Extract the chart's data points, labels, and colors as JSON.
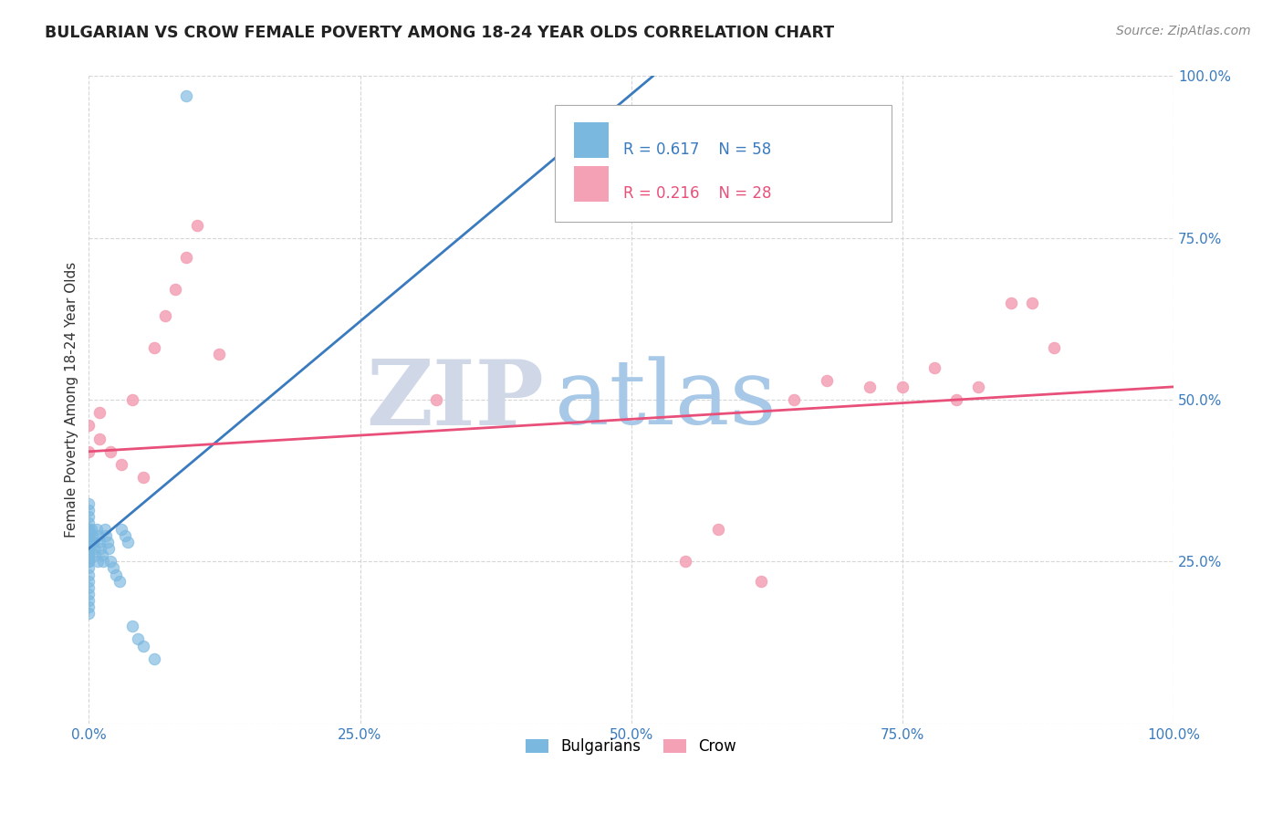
{
  "title": "BULGARIAN VS CROW FEMALE POVERTY AMONG 18-24 YEAR OLDS CORRELATION CHART",
  "source": "Source: ZipAtlas.com",
  "ylabel": "Female Poverty Among 18-24 Year Olds",
  "xlim": [
    0,
    1
  ],
  "ylim": [
    0,
    1
  ],
  "xticks": [
    0.0,
    0.25,
    0.5,
    0.75,
    1.0
  ],
  "yticks": [
    0.0,
    0.25,
    0.5,
    0.75,
    1.0
  ],
  "xtick_labels": [
    "0.0%",
    "25.0%",
    "50.0%",
    "75.0%",
    "100.0%"
  ],
  "ytick_labels": [
    "",
    "25.0%",
    "50.0%",
    "75.0%",
    "100.0%"
  ],
  "bulgarians_color": "#7bb8e0",
  "crow_color": "#f4a0b5",
  "trend_blue": "#3a7bbf",
  "trend_pink": "#e8507a",
  "watermark_zip": "ZIP",
  "watermark_atlas": "atlas",
  "watermark_color_zip": "#d0d8e8",
  "watermark_color_atlas": "#a8c8e8",
  "background_color": "#ffffff",
  "grid_color": "#cccccc",
  "legend_R1": "0.617",
  "legend_N1": "58",
  "legend_R2": "0.216",
  "legend_N2": "28",
  "blue_trend_x0": 0.0,
  "blue_trend_y0": 0.27,
  "blue_trend_x1": 0.52,
  "blue_trend_y1": 1.0,
  "pink_trend_x0": 0.0,
  "pink_trend_y0": 0.42,
  "pink_trend_x1": 1.0,
  "pink_trend_y1": 0.52,
  "bulg_x": [
    0.0,
    0.0,
    0.0,
    0.0,
    0.0,
    0.0,
    0.0,
    0.0,
    0.0,
    0.0,
    0.0,
    0.0,
    0.0,
    0.0,
    0.0,
    0.0,
    0.0,
    0.0,
    0.0,
    0.0,
    0.0,
    0.0,
    0.0,
    0.0,
    0.0,
    0.0,
    0.0,
    0.0,
    0.0,
    0.0,
    0.002,
    0.003,
    0.004,
    0.005,
    0.006,
    0.007,
    0.008,
    0.009,
    0.01,
    0.011,
    0.012,
    0.013,
    0.015,
    0.016,
    0.017,
    0.018,
    0.02,
    0.022,
    0.025,
    0.028,
    0.03,
    0.033,
    0.036,
    0.04,
    0.045,
    0.05,
    0.06,
    0.09
  ],
  "bulg_y": [
    0.27,
    0.29,
    0.3,
    0.28,
    0.26,
    0.31,
    0.32,
    0.33,
    0.34,
    0.27,
    0.25,
    0.28,
    0.3,
    0.27,
    0.26,
    0.25,
    0.29,
    0.28,
    0.3,
    0.27,
    0.26,
    0.25,
    0.24,
    0.23,
    0.22,
    0.21,
    0.2,
    0.19,
    0.18,
    0.17,
    0.3,
    0.29,
    0.28,
    0.27,
    0.26,
    0.3,
    0.25,
    0.29,
    0.28,
    0.27,
    0.26,
    0.25,
    0.3,
    0.29,
    0.28,
    0.27,
    0.25,
    0.24,
    0.23,
    0.22,
    0.3,
    0.29,
    0.28,
    0.15,
    0.13,
    0.12,
    0.1,
    0.97
  ],
  "crow_x": [
    0.0,
    0.0,
    0.01,
    0.01,
    0.02,
    0.03,
    0.04,
    0.05,
    0.06,
    0.07,
    0.08,
    0.09,
    0.1,
    0.12,
    0.32,
    0.55,
    0.58,
    0.62,
    0.65,
    0.68,
    0.72,
    0.75,
    0.78,
    0.8,
    0.82,
    0.85,
    0.87,
    0.89
  ],
  "crow_y": [
    0.42,
    0.46,
    0.44,
    0.48,
    0.42,
    0.4,
    0.5,
    0.38,
    0.58,
    0.63,
    0.67,
    0.72,
    0.77,
    0.57,
    0.5,
    0.25,
    0.3,
    0.22,
    0.5,
    0.53,
    0.52,
    0.52,
    0.55,
    0.5,
    0.52,
    0.65,
    0.65,
    0.58
  ]
}
